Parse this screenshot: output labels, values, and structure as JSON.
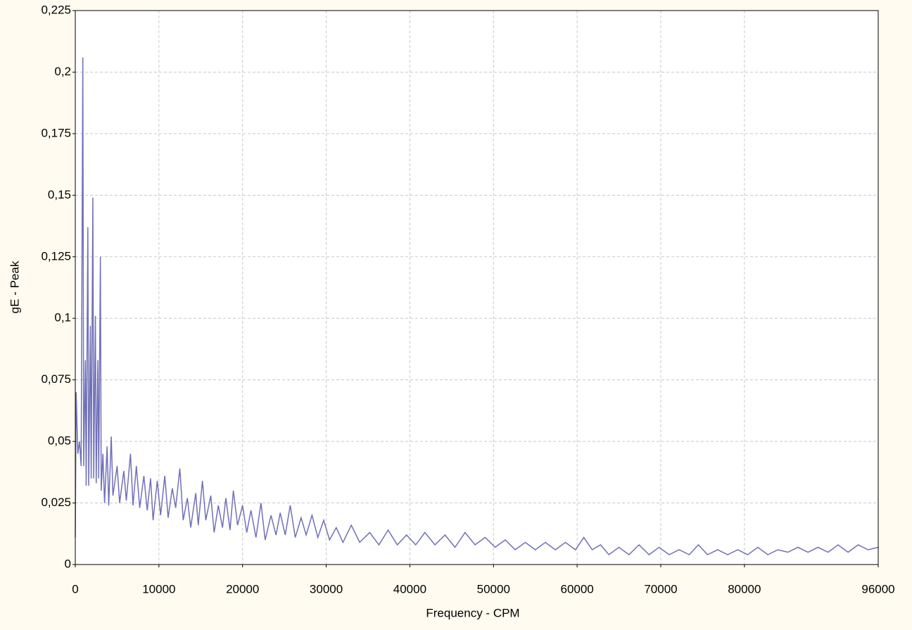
{
  "chart_data": {
    "type": "line",
    "xlabel": "Frequency - CPM",
    "ylabel": "gE - Peak",
    "xlim": [
      0,
      96000
    ],
    "ylim": [
      0,
      0.225
    ],
    "xticks": [
      0,
      10000,
      20000,
      30000,
      40000,
      50000,
      60000,
      70000,
      80000,
      96000
    ],
    "yticks": [
      0,
      {
        "value": 0.025,
        "label": "0,025"
      },
      {
        "value": 0.05,
        "label": "0,05"
      },
      {
        "value": 0.075,
        "label": "0,075"
      },
      {
        "value": 0.1,
        "label": "0,1"
      },
      {
        "value": 0.125,
        "label": "0,125"
      },
      {
        "value": 0.15,
        "label": "0,15"
      },
      {
        "value": 0.175,
        "label": "0,175"
      },
      {
        "value": 0.2,
        "label": "0,2"
      },
      {
        "value": 0.225,
        "label": "0,225"
      }
    ],
    "grid": true,
    "x": [
      0,
      100,
      300,
      500,
      700,
      900,
      1000,
      1200,
      1300,
      1500,
      1600,
      1800,
      1900,
      2100,
      2200,
      2400,
      2500,
      2700,
      2800,
      3000,
      3100,
      3300,
      3500,
      3800,
      4000,
      4300,
      4500,
      5000,
      5300,
      5800,
      6100,
      6600,
      6900,
      7300,
      7700,
      8200,
      8600,
      9000,
      9300,
      9800,
      10200,
      10700,
      11100,
      11600,
      12000,
      12500,
      12900,
      13400,
      13800,
      14400,
      14700,
      15200,
      15600,
      16200,
      16600,
      17100,
      17600,
      18000,
      18500,
      18900,
      19400,
      20000,
      20500,
      21000,
      21600,
      22200,
      22700,
      23400,
      24000,
      24500,
      25100,
      25700,
      26300,
      27000,
      27600,
      28300,
      29000,
      29700,
      30400,
      31200,
      32000,
      33000,
      34000,
      35200,
      36300,
      37400,
      38500,
      39600,
      40700,
      41800,
      43000,
      44200,
      45400,
      46600,
      47800,
      49000,
      50200,
      51400,
      52600,
      53800,
      55000,
      56200,
      57400,
      58600,
      59800,
      60800,
      61800,
      62800,
      63800,
      65000,
      66200,
      67400,
      68600,
      69800,
      71000,
      72200,
      73400,
      74500,
      75600,
      76800,
      78000,
      79200,
      80400,
      81600,
      82800,
      84000,
      85200,
      86400,
      87600,
      88800,
      90000,
      91200,
      92400,
      93600,
      94800,
      96000
    ],
    "series": [
      {
        "color": "#7070b8",
        "values": [
          0.011,
          0.07,
          0.045,
          0.05,
          0.04,
          0.206,
          0.04,
          0.083,
          0.032,
          0.137,
          0.032,
          0.097,
          0.035,
          0.149,
          0.035,
          0.101,
          0.033,
          0.083,
          0.035,
          0.125,
          0.03,
          0.045,
          0.025,
          0.048,
          0.024,
          0.052,
          0.028,
          0.04,
          0.025,
          0.038,
          0.026,
          0.045,
          0.024,
          0.04,
          0.023,
          0.036,
          0.022,
          0.035,
          0.018,
          0.034,
          0.02,
          0.036,
          0.019,
          0.031,
          0.023,
          0.039,
          0.018,
          0.027,
          0.015,
          0.029,
          0.016,
          0.034,
          0.018,
          0.028,
          0.013,
          0.024,
          0.015,
          0.027,
          0.014,
          0.03,
          0.016,
          0.024,
          0.013,
          0.022,
          0.011,
          0.025,
          0.01,
          0.02,
          0.012,
          0.021,
          0.012,
          0.024,
          0.011,
          0.019,
          0.012,
          0.02,
          0.011,
          0.018,
          0.01,
          0.015,
          0.009,
          0.016,
          0.009,
          0.013,
          0.008,
          0.014,
          0.008,
          0.012,
          0.008,
          0.013,
          0.008,
          0.012,
          0.007,
          0.013,
          0.008,
          0.011,
          0.007,
          0.01,
          0.006,
          0.009,
          0.006,
          0.009,
          0.006,
          0.009,
          0.006,
          0.011,
          0.006,
          0.008,
          0.004,
          0.007,
          0.004,
          0.008,
          0.004,
          0.007,
          0.004,
          0.006,
          0.004,
          0.008,
          0.004,
          0.006,
          0.004,
          0.006,
          0.004,
          0.007,
          0.004,
          0.006,
          0.005,
          0.007,
          0.005,
          0.007,
          0.005,
          0.008,
          0.005,
          0.008,
          0.006,
          0.007
        ]
      }
    ]
  }
}
